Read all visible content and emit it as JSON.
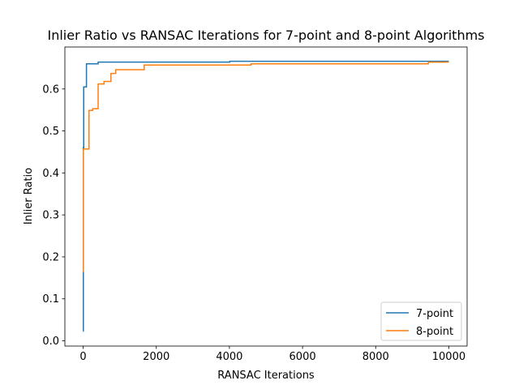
{
  "chart_data": {
    "type": "line",
    "title": "Inlier Ratio vs RANSAC Iterations for 7-point and 8-point Algorithms",
    "xlabel": "RANSAC Iterations",
    "ylabel": "Inlier Ratio",
    "xlim": [
      -500,
      10500
    ],
    "ylim": [
      -0.0125,
      0.7
    ],
    "xticks": [
      0,
      2000,
      4000,
      6000,
      8000,
      10000
    ],
    "xtick_labels": [
      "0",
      "2000",
      "4000",
      "6000",
      "8000",
      "10000"
    ],
    "yticks": [
      0.0,
      0.1,
      0.2,
      0.3,
      0.4,
      0.5,
      0.6
    ],
    "ytick_labels": [
      "0.0",
      "0.1",
      "0.2",
      "0.3",
      "0.4",
      "0.5",
      "0.6"
    ],
    "grid": false,
    "legend_position": "lower right",
    "series": [
      {
        "name": "7-point",
        "color": "#1f77b4",
        "step": "post",
        "points": [
          [
            0,
            0.023
          ],
          [
            5,
            0.46
          ],
          [
            15,
            0.605
          ],
          [
            80,
            0.605
          ],
          [
            90,
            0.66
          ],
          [
            400,
            0.66
          ],
          [
            410,
            0.664
          ],
          [
            4000,
            0.664
          ],
          [
            4010,
            0.666
          ],
          [
            10000,
            0.666
          ]
        ]
      },
      {
        "name": "8-point",
        "color": "#ff7f0e",
        "step": "post",
        "points": [
          [
            0,
            0.165
          ],
          [
            5,
            0.457
          ],
          [
            150,
            0.457
          ],
          [
            160,
            0.549
          ],
          [
            250,
            0.549
          ],
          [
            260,
            0.553
          ],
          [
            400,
            0.553
          ],
          [
            410,
            0.612
          ],
          [
            560,
            0.612
          ],
          [
            570,
            0.618
          ],
          [
            750,
            0.618
          ],
          [
            760,
            0.637
          ],
          [
            880,
            0.637
          ],
          [
            890,
            0.646
          ],
          [
            1660,
            0.646
          ],
          [
            1670,
            0.657
          ],
          [
            4580,
            0.657
          ],
          [
            4590,
            0.66
          ],
          [
            9430,
            0.66
          ],
          [
            9440,
            0.664
          ],
          [
            10000,
            0.664
          ]
        ]
      }
    ]
  }
}
